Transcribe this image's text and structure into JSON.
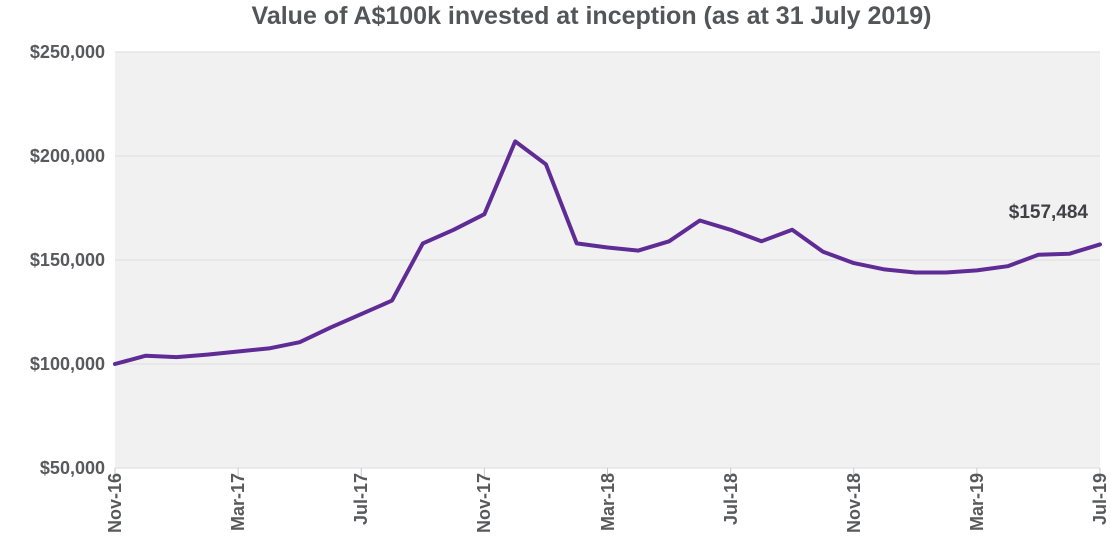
{
  "title": "Value of A$100k invested at inception (as at 31 July 2019)",
  "annotation_label": "$157,484",
  "colors": {
    "line": "#5f2c96",
    "plot_background": "#f1f1f2",
    "gridline": "#dddddd",
    "tick": "#c7c7c7",
    "axis_text": "#58595b",
    "title_text": "#545557",
    "annotation_text": "#414042"
  },
  "chart_data": {
    "type": "line",
    "title": "Value of A$100k invested at inception (as at 31 July 2019)",
    "x": [
      "Nov-16",
      "Dec-16",
      "Jan-17",
      "Feb-17",
      "Mar-17",
      "Apr-17",
      "May-17",
      "Jun-17",
      "Jul-17",
      "Aug-17",
      "Sep-17",
      "Oct-17",
      "Nov-17",
      "Dec-17",
      "Jan-18",
      "Feb-18",
      "Mar-18",
      "Apr-18",
      "May-18",
      "Jun-18",
      "Jul-18",
      "Aug-18",
      "Sep-18",
      "Oct-18",
      "Nov-18",
      "Dec-18",
      "Jan-19",
      "Feb-19",
      "Mar-19",
      "Apr-19",
      "May-19",
      "Jun-19",
      "Jul-19"
    ],
    "values": [
      100000,
      104000,
      103300,
      104500,
      106000,
      107500,
      110500,
      117500,
      124000,
      130500,
      158000,
      164500,
      172000,
      207000,
      196000,
      158000,
      156000,
      154500,
      159000,
      169000,
      164500,
      159000,
      164500,
      154000,
      148500,
      145500,
      144000,
      144000,
      145000,
      147000,
      152500,
      153000,
      157484
    ],
    "x_tick_labels": [
      "Nov-16",
      "Mar-17",
      "Jul-17",
      "Nov-17",
      "Mar-18",
      "Jul-18",
      "Nov-18",
      "Mar-19",
      "Jul-19"
    ],
    "y_tick_labels": [
      "$250,000",
      "$200,000",
      "$150,000",
      "$100,000",
      "$50,000"
    ],
    "ylim": [
      50000,
      250000
    ],
    "xlabel": "",
    "ylabel": "",
    "grid": "horizontal",
    "legend": "none",
    "annotation": {
      "text": "$157,484",
      "point": "Jul-19",
      "value": 157484
    }
  }
}
